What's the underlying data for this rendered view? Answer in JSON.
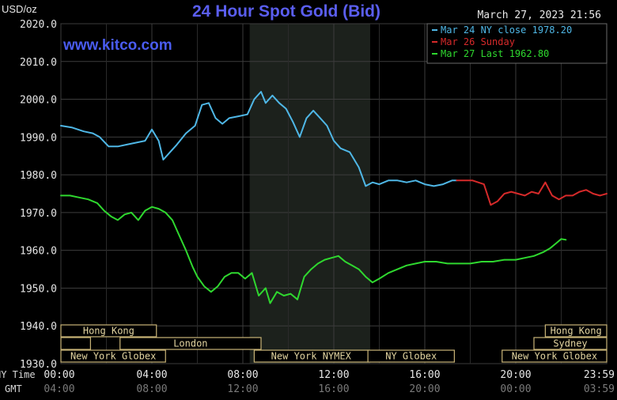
{
  "header": {
    "unit": "USD/oz",
    "title": "24 Hour Spot Gold (Bid)",
    "timestamp": "March 27, 2023 21:56",
    "watermark": "www.kitco.com"
  },
  "legend": [
    {
      "label": "Mar 24 NY close 1978.20",
      "color": "#4fb7e6"
    },
    {
      "label": "Mar 26 Sunday",
      "color": "#d62a2a"
    },
    {
      "label": "Mar 27 Last 1962.80",
      "color": "#2fd82f"
    }
  ],
  "sessions": [
    {
      "name": "Hong Kong",
      "start": 0,
      "end": 4.2
    },
    {
      "name": "Hong Kong",
      "start": 21.3,
      "end": 24
    },
    {
      "name": "London",
      "start": 0,
      "end": 1.3
    },
    {
      "name": "London",
      "start": 2.6,
      "end": 8.8
    },
    {
      "name": "Sydney",
      "start": 20.8,
      "end": 24
    },
    {
      "name": "New York Globex",
      "start": 0,
      "end": 4.6
    },
    {
      "name": "New York Globex",
      "start": 19.4,
      "end": 24
    },
    {
      "name": "New York NYMEX",
      "start": 8.5,
      "end": 13.5
    },
    {
      "name": "NY Globex",
      "start": 13.5,
      "end": 17.3
    }
  ],
  "row_labels": {
    "ny": "NY Time",
    "gmt": "GMT"
  },
  "chart_data": {
    "type": "line",
    "title": "24 Hour Spot Gold (Bid)",
    "ylabel": "USD/oz",
    "xlabel": "NY Time / GMT",
    "ylim": [
      1930,
      2020
    ],
    "xlim": [
      0,
      24
    ],
    "y_ticks": [
      "2020.0",
      "2010.0",
      "2000.0",
      "1990.0",
      "1980.0",
      "1970.0",
      "1960.0",
      "1950.0",
      "1940.0",
      "1930.0"
    ],
    "x_ticks_ny": [
      "00:00",
      "04:00",
      "08:00",
      "12:00",
      "16:00",
      "20:00",
      "23:59"
    ],
    "x_ticks_gmt": [
      "04:00",
      "08:00",
      "12:00",
      "16:00",
      "20:00",
      "00:00",
      "03:59"
    ],
    "highlight_range": [
      8.3,
      13.6
    ],
    "series": [
      {
        "name": "Mar 24 NY close 1978.20",
        "color": "#4fb7e6",
        "x": [
          0,
          0.5,
          1.0,
          1.4,
          1.7,
          2.1,
          2.5,
          2.9,
          3.3,
          3.7,
          4.0,
          4.3,
          4.5,
          4.8,
          5.1,
          5.5,
          5.9,
          6.2,
          6.5,
          6.8,
          7.1,
          7.4,
          7.8,
          8.2,
          8.5,
          8.8,
          9.0,
          9.3,
          9.6,
          9.9,
          10.2,
          10.5,
          10.8,
          11.1,
          11.4,
          11.7,
          12.0,
          12.3,
          12.7,
          13.1,
          13.4,
          13.7,
          14.0,
          14.4,
          14.8,
          15.2,
          15.6,
          16.0,
          16.4,
          16.8,
          17.2,
          17.4
        ],
        "y": [
          1993,
          1992.5,
          1991.5,
          1991,
          1990,
          1987.5,
          1987.5,
          1988,
          1988.5,
          1989,
          1992,
          1989,
          1984,
          1986,
          1988,
          1991,
          1993,
          1998.5,
          1999,
          1995,
          1993.5,
          1995,
          1995.5,
          1996,
          2000,
          2002,
          1999,
          2001,
          1999,
          1997.5,
          1994,
          1990,
          1995,
          1997,
          1995,
          1993,
          1989,
          1987,
          1986,
          1982,
          1977,
          1978,
          1977.5,
          1978.5,
          1978.5,
          1978,
          1978.5,
          1977.5,
          1977,
          1977.5,
          1978.5,
          1978.5
        ]
      },
      {
        "name": "Mar 26 Sunday",
        "color": "#d62a2a",
        "x": [
          17.4,
          18.1,
          18.6,
          18.9,
          19.2,
          19.5,
          19.8,
          20.1,
          20.4,
          20.7,
          21.0,
          21.3,
          21.6,
          21.9,
          22.2,
          22.5,
          22.8,
          23.1,
          23.4,
          23.7,
          24.0
        ],
        "y": [
          1978.5,
          1978.5,
          1977.5,
          1972,
          1973,
          1975,
          1975.5,
          1975,
          1974.5,
          1975.5,
          1975,
          1978,
          1974.5,
          1973.5,
          1974.5,
          1974.5,
          1975.5,
          1976,
          1975,
          1974.5,
          1975
        ]
      },
      {
        "name": "Mar 27 Last 1962.80",
        "color": "#2fd82f",
        "x": [
          0,
          0.4,
          0.8,
          1.2,
          1.6,
          1.9,
          2.2,
          2.5,
          2.8,
          3.1,
          3.4,
          3.7,
          4.0,
          4.3,
          4.6,
          4.9,
          5.2,
          5.5,
          5.8,
          6.0,
          6.3,
          6.6,
          6.9,
          7.2,
          7.5,
          7.8,
          8.1,
          8.4,
          8.7,
          9.0,
          9.2,
          9.5,
          9.8,
          10.1,
          10.4,
          10.7,
          11.0,
          11.3,
          11.6,
          11.9,
          12.2,
          12.5,
          12.8,
          13.1,
          13.4,
          13.7,
          14.0,
          14.4,
          14.8,
          15.2,
          15.6,
          16.0,
          16.5,
          17.0,
          17.5,
          18.0,
          18.5,
          19.0,
          19.5,
          20.0,
          20.4,
          20.8,
          21.2,
          21.5,
          21.8,
          22.0,
          22.2
        ],
        "y": [
          1974.5,
          1974.5,
          1974,
          1973.5,
          1972.5,
          1970.5,
          1969,
          1968,
          1969.5,
          1970,
          1968,
          1970.5,
          1971.5,
          1971,
          1970,
          1968,
          1964,
          1960,
          1955.5,
          1953,
          1950.5,
          1949,
          1950.5,
          1953,
          1954,
          1954,
          1952.5,
          1954,
          1948,
          1950,
          1946,
          1949,
          1948,
          1948.5,
          1947,
          1953,
          1955,
          1956.5,
          1957.5,
          1958,
          1958.5,
          1957,
          1956,
          1955,
          1953,
          1951.5,
          1952.5,
          1954,
          1955,
          1956,
          1956.5,
          1957,
          1957,
          1956.5,
          1956.5,
          1956.5,
          1957,
          1957,
          1957.5,
          1957.5,
          1958,
          1958.5,
          1959.5,
          1960.5,
          1962,
          1963,
          1962.8
        ]
      }
    ]
  }
}
